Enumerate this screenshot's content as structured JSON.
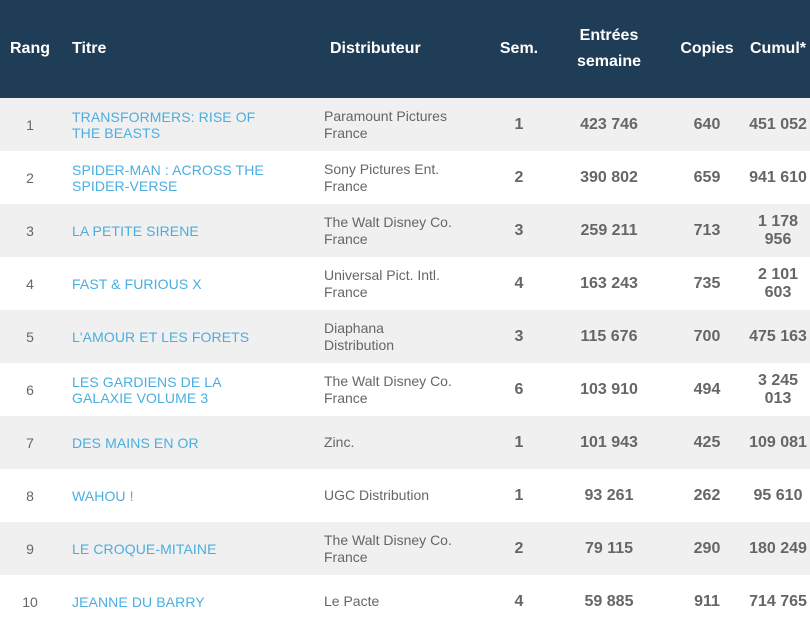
{
  "headers": {
    "rang": "Rang",
    "titre": "Titre",
    "distributeur": "Distributeur",
    "sem": "Sem.",
    "entrees_line1": "Entrées",
    "entrees_line2": "semaine",
    "copies": "Copies",
    "cumul": "Cumul*"
  },
  "rows": [
    {
      "rang": "1",
      "titre_l1": "TRANSFORMERS: RISE OF",
      "titre_l2": "THE BEASTS",
      "dist_l1": "Paramount Pictures",
      "dist_l2": "France",
      "sem": "1",
      "entrees": "423 746",
      "copies": "640",
      "cumul": "451 052"
    },
    {
      "rang": "2",
      "titre_l1": "SPIDER-MAN : ACROSS THE",
      "titre_l2": "SPIDER-VERSE",
      "dist_l1": "Sony Pictures Ent.",
      "dist_l2": "France",
      "sem": "2",
      "entrees": "390 802",
      "copies": "659",
      "cumul": "941 610"
    },
    {
      "rang": "3",
      "titre_l1": "LA PETITE SIRENE",
      "titre_l2": "",
      "dist_l1": "The Walt Disney Co.",
      "dist_l2": "France",
      "sem": "3",
      "entrees": "259 211",
      "copies": "713",
      "cumul": "1 178 956"
    },
    {
      "rang": "4",
      "titre_l1": "FAST & FURIOUS X",
      "titre_l2": "",
      "dist_l1": "Universal Pict. Intl.",
      "dist_l2": "France",
      "sem": "4",
      "entrees": "163 243",
      "copies": "735",
      "cumul": "2 101 603"
    },
    {
      "rang": "5",
      "titre_l1": "L'AMOUR ET LES FORETS",
      "titre_l2": "",
      "dist_l1": "Diaphana",
      "dist_l2": "Distribution",
      "sem": "3",
      "entrees": "115 676",
      "copies": "700",
      "cumul": "475 163"
    },
    {
      "rang": "6",
      "titre_l1": "LES GARDIENS DE LA",
      "titre_l2": "GALAXIE VOLUME 3",
      "dist_l1": "The Walt Disney Co.",
      "dist_l2": "France",
      "sem": "6",
      "entrees": "103 910",
      "copies": "494",
      "cumul": "3 245 013"
    },
    {
      "rang": "7",
      "titre_l1": "DES MAINS EN OR",
      "titre_l2": "",
      "dist_l1": "Zinc.",
      "dist_l2": "",
      "sem": "1",
      "entrees": "101 943",
      "copies": "425",
      "cumul": "109 081"
    },
    {
      "rang": "8",
      "titre_l1": "WAHOU !",
      "titre_l2": "",
      "dist_l1": "UGC Distribution",
      "dist_l2": "",
      "sem": "1",
      "entrees": "93 261",
      "copies": "262",
      "cumul": "95 610"
    },
    {
      "rang": "9",
      "titre_l1": "LE CROQUE-MITAINE",
      "titre_l2": "",
      "dist_l1": "The Walt Disney Co.",
      "dist_l2": "France",
      "sem": "2",
      "entrees": "79 115",
      "copies": "290",
      "cumul": "180 249"
    },
    {
      "rang": "10",
      "titre_l1": "JEANNE DU BARRY",
      "titre_l2": "",
      "dist_l1": "Le Pacte",
      "dist_l2": "",
      "sem": "4",
      "entrees": "59 885",
      "copies": "911",
      "cumul": "714 765"
    }
  ]
}
